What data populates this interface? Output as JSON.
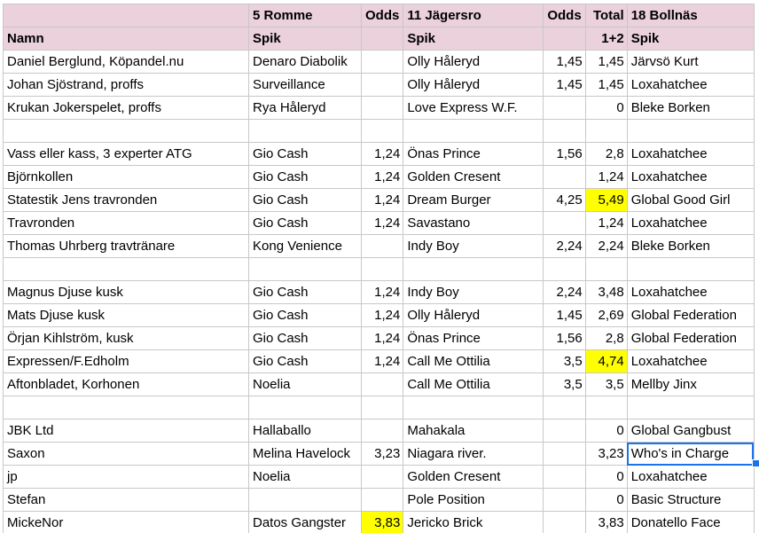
{
  "header1": [
    "",
    "5 Romme",
    "Odds",
    "11 Jägersro",
    "Odds",
    "Total",
    "18 Bollnäs"
  ],
  "header2": [
    "Namn",
    "Spik",
    "",
    "Spik",
    "",
    "1+2",
    "Spik"
  ],
  "rows": [
    [
      "Daniel Berglund, Köpandel.nu",
      "Denaro Diabolik",
      "",
      "Olly Håleryd",
      "1,45",
      "1,45",
      "Järvsö Kurt"
    ],
    [
      "Johan Sjöstrand, proffs",
      "Surveillance",
      "",
      "Olly Håleryd",
      "1,45",
      "1,45",
      " Loxahatchee"
    ],
    [
      "Krukan Jokerspelet, proffs",
      "Rya Håleryd",
      "",
      "Love Express W.F.",
      "",
      "0",
      "Bleke Borken"
    ],
    [
      "",
      "",
      "",
      "",
      "",
      "",
      ""
    ],
    [
      "Vass eller kass, 3 experter ATG",
      "Gio Cash",
      "1,24",
      "Önas Prince",
      "1,56",
      "2,8",
      " Loxahatchee"
    ],
    [
      "Björnkollen",
      "Gio Cash",
      "1,24",
      "Golden Cresent",
      "",
      "1,24",
      " Loxahatchee"
    ],
    [
      "Statestik Jens travronden",
      "Gio Cash",
      "1,24",
      "Dream Burger",
      "4,25",
      "5,49",
      "Global Good Girl"
    ],
    [
      "Travronden",
      "Gio Cash",
      "1,24",
      "Savastano",
      "",
      "1,24",
      " Loxahatchee"
    ],
    [
      "Thomas Uhrberg travtränare",
      "Kong Venience",
      "",
      "Indy Boy",
      "2,24",
      "2,24",
      "Bleke Borken"
    ],
    [
      "",
      "",
      "",
      "",
      "",
      "",
      ""
    ],
    [
      "Magnus Djuse kusk",
      "Gio Cash",
      "1,24",
      "Indy Boy",
      "2,24",
      "3,48",
      " Loxahatchee"
    ],
    [
      "Mats Djuse kusk",
      "Gio Cash",
      "1,24",
      "Olly Håleryd",
      "1,45",
      "2,69",
      "Global Federation"
    ],
    [
      "Örjan Kihlström, kusk",
      "Gio Cash",
      "1,24",
      "Önas Prince",
      "1,56",
      "2,8",
      "Global Federation"
    ],
    [
      "Expressen/F.Edholm",
      "Gio Cash",
      "1,24",
      "Call Me Ottilia",
      "3,5",
      "4,74",
      " Loxahatchee"
    ],
    [
      "Aftonbladet, Korhonen",
      "Noelia",
      "",
      "Call Me Ottilia",
      "3,5",
      "3,5",
      "Mellby Jinx"
    ],
    [
      "",
      "",
      "",
      "",
      "",
      "",
      ""
    ],
    [
      "JBK Ltd",
      "Hallaballo",
      "",
      "Mahakala",
      "",
      "0",
      "Global Gangbust"
    ],
    [
      "Saxon",
      "Melina Havelock",
      "3,23",
      "Niagara river.",
      "",
      "3,23",
      "Who's in Charge"
    ],
    [
      "jp",
      "Noelia",
      "",
      "Golden Cresent",
      "",
      "0",
      " Loxahatchee"
    ],
    [
      "Stefan",
      "",
      "",
      "Pole Position",
      "",
      "0",
      "Basic Structure"
    ],
    [
      "MickeNor",
      "Datos Gangster",
      "3,83",
      "Jericko Brick",
      "",
      "3,83",
      "Donatello Face"
    ]
  ],
  "highlight_color": "#ffff00",
  "header_color": "#ead1dc",
  "selection_color": "#1a73e8"
}
